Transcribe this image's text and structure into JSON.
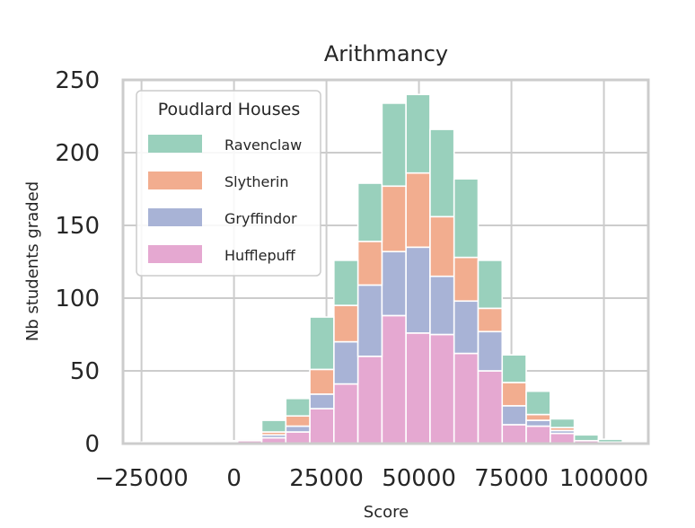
{
  "chart_data": {
    "type": "bar",
    "stacked": true,
    "title": "Arithmancy",
    "xlabel": "Score",
    "ylabel": "Nb students graded",
    "xlim": [
      -30000,
      112000
    ],
    "ylim": [
      0,
      250
    ],
    "xticks": [
      -25000,
      0,
      25000,
      50000,
      75000,
      100000
    ],
    "xtick_labels": [
      "−25000",
      "0",
      "25000",
      "50000",
      "75000",
      "100000"
    ],
    "yticks": [
      0,
      50,
      100,
      150,
      200,
      250
    ],
    "ytick_labels": [
      "0",
      "50",
      "100",
      "150",
      "200",
      "250"
    ],
    "grid": true,
    "bins": [
      [
        -25000,
        -18500
      ],
      [
        -18500,
        -12000
      ],
      [
        -12000,
        -5500
      ],
      [
        -5500,
        1000
      ],
      [
        1000,
        7500
      ],
      [
        7500,
        14000
      ],
      [
        14000,
        20500
      ],
      [
        20500,
        27000
      ],
      [
        27000,
        33500
      ],
      [
        33500,
        40000
      ],
      [
        40000,
        46500
      ],
      [
        46500,
        53000
      ],
      [
        53000,
        59500
      ],
      [
        59500,
        66000
      ],
      [
        66000,
        72500
      ],
      [
        72500,
        79000
      ],
      [
        79000,
        85500
      ],
      [
        85500,
        92000
      ],
      [
        92000,
        98500
      ],
      [
        98500,
        105000
      ]
    ],
    "legend": {
      "title": "Poudlard Houses",
      "placement": "upper-left",
      "entries": [
        "Ravenclaw",
        "Slytherin",
        "Gryffindor",
        "Hufflepuff"
      ]
    },
    "series": [
      {
        "name": "Hufflepuff",
        "color": "#e5a8d1",
        "values": [
          1,
          1,
          1,
          1,
          2,
          4,
          8,
          24,
          41,
          60,
          88,
          76,
          75,
          62,
          50,
          13,
          12,
          7,
          2,
          1
        ]
      },
      {
        "name": "Gryffindor",
        "color": "#a8b3d6",
        "values": [
          0,
          0,
          0,
          1,
          1,
          2,
          4,
          10,
          29,
          49,
          44,
          59,
          40,
          36,
          27,
          13,
          4,
          2,
          0,
          0
        ]
      },
      {
        "name": "Slytherin",
        "color": "#f2ad8f",
        "values": [
          0,
          0,
          0,
          0,
          0,
          2,
          7,
          17,
          25,
          30,
          45,
          51,
          41,
          30,
          16,
          16,
          4,
          2,
          0,
          0
        ]
      },
      {
        "name": "Ravenclaw",
        "color": "#99d0bc",
        "values": [
          0,
          0,
          0,
          0,
          0,
          8,
          12,
          36,
          31,
          40,
          57,
          54,
          60,
          54,
          33,
          19,
          16,
          6,
          4,
          2
        ]
      }
    ]
  }
}
